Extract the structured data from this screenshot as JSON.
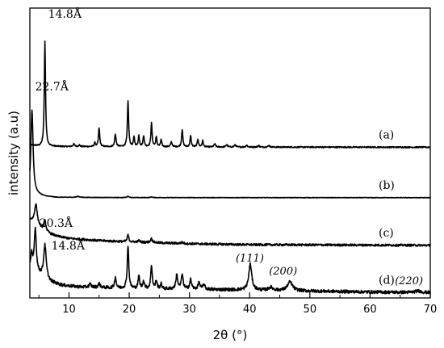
{
  "chart_data": {
    "type": "line",
    "xlabel": "2θ (°)",
    "ylabel": "intensity (a.u)",
    "xlim": [
      3.5,
      70
    ],
    "xticks": [
      10,
      20,
      30,
      40,
      50,
      60,
      70
    ],
    "grid": false,
    "legend": "none",
    "series": [
      {
        "name": "(a)",
        "baseline": 0.26,
        "background": [
          [
            3.5,
            0.34
          ],
          [
            5,
            0.29
          ],
          [
            10,
            0.28
          ],
          [
            20,
            0.275
          ],
          [
            35,
            0.265
          ],
          [
            70,
            0.26
          ]
        ],
        "peaks": [
          [
            6.0,
            3.35,
            0.12
          ],
          [
            10.8,
            0.08,
            0.15
          ],
          [
            11.7,
            0.05,
            0.15
          ],
          [
            15.0,
            0.6,
            0.12
          ],
          [
            14.3,
            0.12,
            0.12
          ],
          [
            17.7,
            0.4,
            0.13
          ],
          [
            19.8,
            1.45,
            0.12
          ],
          [
            20.8,
            0.3,
            0.12
          ],
          [
            21.6,
            0.35,
            0.12
          ],
          [
            22.4,
            0.35,
            0.12
          ],
          [
            23.7,
            0.75,
            0.12
          ],
          [
            24.5,
            0.3,
            0.12
          ],
          [
            25.3,
            0.22,
            0.12
          ],
          [
            27.0,
            0.15,
            0.15
          ],
          [
            28.8,
            0.55,
            0.12
          ],
          [
            30.2,
            0.35,
            0.12
          ],
          [
            31.4,
            0.25,
            0.12
          ],
          [
            32.2,
            0.2,
            0.12
          ],
          [
            34.2,
            0.1,
            0.15
          ],
          [
            36.2,
            0.08,
            0.15
          ],
          [
            37.6,
            0.07,
            0.15
          ],
          [
            39.5,
            0.06,
            0.15
          ],
          [
            41.5,
            0.05,
            0.15
          ],
          [
            43.2,
            0.05,
            0.15
          ]
        ],
        "noise": 0.02
      },
      {
        "name": "(b)",
        "baseline": 0.15,
        "background": [
          [
            3.5,
            0.25
          ],
          [
            4.6,
            0.25
          ],
          [
            6,
            0.19
          ],
          [
            8,
            0.16
          ],
          [
            20,
            0.152
          ],
          [
            70,
            0.15
          ]
        ],
        "peaks": [
          [
            3.85,
            2.7,
            0.22
          ],
          [
            11.5,
            0.03,
            0.3
          ],
          [
            19.8,
            0.04,
            0.2
          ],
          [
            23.7,
            0.02,
            0.2
          ]
        ],
        "noise": 0.008
      },
      {
        "name": "(c)",
        "baseline": 0.13,
        "background": [
          [
            3.5,
            0.95
          ],
          [
            4.5,
            0.85
          ],
          [
            6,
            0.55
          ],
          [
            8,
            0.42
          ],
          [
            10,
            0.35
          ],
          [
            15,
            0.28
          ],
          [
            20,
            0.24
          ],
          [
            30,
            0.18
          ],
          [
            40,
            0.15
          ],
          [
            70,
            0.13
          ]
        ],
        "peaks": [
          [
            4.5,
            0.6,
            0.25
          ],
          [
            6.0,
            0.35,
            0.22
          ],
          [
            19.8,
            0.22,
            0.15
          ],
          [
            23.7,
            0.12,
            0.2
          ],
          [
            21.6,
            0.05,
            0.2
          ],
          [
            28.8,
            0.04,
            0.2
          ]
        ],
        "noise": 0.035
      },
      {
        "name": "(d)",
        "baseline": 0.17,
        "background": [
          [
            3.5,
            1.0
          ],
          [
            5,
            0.75
          ],
          [
            7,
            0.5
          ],
          [
            9,
            0.4
          ],
          [
            12,
            0.35
          ],
          [
            16,
            0.33
          ],
          [
            20,
            0.3
          ],
          [
            30,
            0.28
          ],
          [
            40,
            0.25
          ],
          [
            50,
            0.22
          ],
          [
            60,
            0.19
          ],
          [
            70,
            0.17
          ]
        ],
        "peaks": [
          [
            4.4,
            1.35,
            0.2
          ],
          [
            3.8,
            0.4,
            0.15
          ],
          [
            6.0,
            1.05,
            0.25
          ],
          [
            13.5,
            0.1,
            0.2
          ],
          [
            15.0,
            0.12,
            0.2
          ],
          [
            17.7,
            0.35,
            0.15
          ],
          [
            19.8,
            1.38,
            0.15
          ],
          [
            21.6,
            0.4,
            0.15
          ],
          [
            22.4,
            0.25,
            0.15
          ],
          [
            23.7,
            0.75,
            0.15
          ],
          [
            24.5,
            0.25,
            0.15
          ],
          [
            25.3,
            0.15,
            0.15
          ],
          [
            27.9,
            0.45,
            0.18
          ],
          [
            28.8,
            0.45,
            0.18
          ],
          [
            30.2,
            0.3,
            0.18
          ],
          [
            31.6,
            0.2,
            0.2
          ],
          [
            32.4,
            0.15,
            0.2
          ],
          [
            40.1,
            0.82,
            0.3
          ],
          [
            43.5,
            0.1,
            0.4
          ],
          [
            46.7,
            0.28,
            0.5
          ],
          [
            68.0,
            0.05,
            0.6
          ]
        ],
        "noise": 0.05
      }
    ],
    "offsets": [
      4.55,
      3.05,
      1.55,
      0.0
    ],
    "ylim": [
      0,
      9.25
    ],
    "annotations": [
      {
        "text": "14.8Å",
        "x": 6.0,
        "series": 0
      },
      {
        "text": "22.7Å",
        "x": 3.85,
        "series": 1
      },
      {
        "text": "20.3Å",
        "x": 4.4,
        "series": 3
      },
      {
        "text": "14.8Å",
        "x": 6.0,
        "series": 3
      },
      {
        "text": "(111)",
        "x": 40.1,
        "series": 3
      },
      {
        "text": "(200)",
        "x": 46.7,
        "series": 3
      },
      {
        "text": "(220)",
        "x": 68.0,
        "series": 3
      }
    ]
  }
}
